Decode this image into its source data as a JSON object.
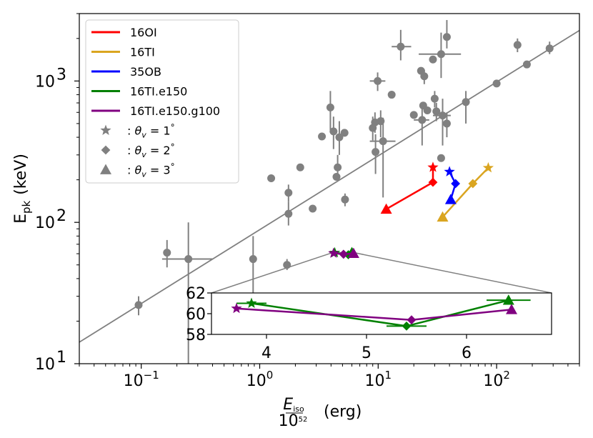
{
  "chart_data": {
    "type": "scatter",
    "xscale": "log",
    "yscale": "log",
    "xlim": [
      0.03,
      500
    ],
    "ylim": [
      10,
      3000
    ],
    "xlabel": {
      "prefix": "E",
      "prefix_sub": "iso",
      "denominator_base": "10",
      "denominator_exp": "52",
      "suffix": "(erg)"
    },
    "ylabel": {
      "prefix": "E",
      "prefix_sub": "pk",
      "suffix": "(keV)"
    },
    "x_ticks": [
      {
        "value": 0.1,
        "base": "10",
        "exp": "−1"
      },
      {
        "value": 1,
        "base": "10",
        "exp": "0"
      },
      {
        "value": 10,
        "base": "10",
        "exp": "1"
      },
      {
        "value": 100,
        "base": "10",
        "exp": "2"
      }
    ],
    "y_ticks": [
      {
        "value": 10,
        "base": "10",
        "exp": "1"
      },
      {
        "value": 100,
        "base": "10",
        "exp": "2"
      },
      {
        "value": 1000,
        "base": "10",
        "exp": "3"
      }
    ],
    "fit_line": {
      "color": "#808080",
      "x": [
        0.03,
        500
      ],
      "y": [
        14.2,
        2280
      ]
    },
    "observations": {
      "color": "#808080",
      "points": [
        {
          "x": 0.095,
          "y": 26,
          "ylo": 22,
          "yhi": 30
        },
        {
          "x": 0.165,
          "y": 61,
          "ylo": 48,
          "yhi": 75
        },
        {
          "x": 0.25,
          "y": 55,
          "ylo": 5,
          "yhi": 100,
          "xlo": 0.15,
          "xhi": 0.4
        },
        {
          "x": 0.88,
          "y": 55,
          "ylo": 20,
          "yhi": 80
        },
        {
          "x": 1.25,
          "y": 205
        },
        {
          "x": 1.7,
          "y": 50,
          "ylo": 46,
          "yhi": 55
        },
        {
          "x": 1.75,
          "y": 162,
          "ylo": 140,
          "yhi": 185
        },
        {
          "x": 1.75,
          "y": 115,
          "ylo": 95,
          "yhi": 140
        },
        {
          "x": 2.2,
          "y": 245
        },
        {
          "x": 2.8,
          "y": 125
        },
        {
          "x": 3.35,
          "y": 405
        },
        {
          "x": 3.95,
          "y": 650,
          "ylo": 450,
          "yhi": 850
        },
        {
          "x": 4.2,
          "y": 440,
          "ylo": 330,
          "yhi": 560
        },
        {
          "x": 4.45,
          "y": 210
        },
        {
          "x": 4.55,
          "y": 245,
          "ylo": 200,
          "yhi": 300
        },
        {
          "x": 4.7,
          "y": 400,
          "ylo": 300,
          "yhi": 520
        },
        {
          "x": 5.2,
          "y": 430
        },
        {
          "x": 5.25,
          "y": 145,
          "ylo": 130,
          "yhi": 160
        },
        {
          "x": 9.0,
          "y": 465,
          "ylo": 380,
          "yhi": 560
        },
        {
          "x": 9.4,
          "y": 510,
          "ylo": 430,
          "yhi": 600
        },
        {
          "x": 9.5,
          "y": 315,
          "ylo": 220,
          "yhi": 420
        },
        {
          "x": 9.9,
          "y": 1000,
          "ylo": 850,
          "yhi": 1150,
          "xlo": 8.5,
          "xhi": 11.5
        },
        {
          "x": 10.5,
          "y": 520,
          "ylo": 400,
          "yhi": 620
        },
        {
          "x": 11.0,
          "y": 375,
          "ylo": 150,
          "yhi": 550,
          "xlo": 8.5,
          "xhi": 14.0
        },
        {
          "x": 13.0,
          "y": 800
        },
        {
          "x": 15.5,
          "y": 1750,
          "ylo": 1400,
          "yhi": 2300,
          "xlo": 13.0,
          "xhi": 19.0
        },
        {
          "x": 20.0,
          "y": 575
        },
        {
          "x": 23.0,
          "y": 1180
        },
        {
          "x": 23.5,
          "y": 530,
          "ylo": 350,
          "yhi": 700,
          "xlo": 20.0,
          "xhi": 27.0
        },
        {
          "x": 24.5,
          "y": 1080,
          "ylo": 950,
          "yhi": 1200
        },
        {
          "x": 24.0,
          "y": 670
        },
        {
          "x": 26.0,
          "y": 620
        },
        {
          "x": 29.0,
          "y": 1420
        },
        {
          "x": 30.0,
          "y": 750,
          "ylo": 650,
          "yhi": 850
        },
        {
          "x": 31.0,
          "y": 610,
          "ylo": 520,
          "yhi": 700
        },
        {
          "x": 34.0,
          "y": 1550,
          "ylo": 1050,
          "yhi": 2200,
          "xlo": 22.0,
          "xhi": 50.0
        },
        {
          "x": 34.0,
          "y": 285
        },
        {
          "x": 35.0,
          "y": 570,
          "ylo": 350,
          "yhi": 750,
          "xlo": 29.0,
          "xhi": 41.0
        },
        {
          "x": 38.0,
          "y": 2050,
          "ylo": 1700,
          "yhi": 2700
        },
        {
          "x": 38.0,
          "y": 500,
          "ylo": 400,
          "yhi": 600
        },
        {
          "x": 55.0,
          "y": 710,
          "ylo": 500,
          "yhi": 850
        },
        {
          "x": 100.0,
          "y": 960
        },
        {
          "x": 150.0,
          "y": 1800,
          "ylo": 1600,
          "yhi": 2000
        },
        {
          "x": 180.0,
          "y": 1310
        },
        {
          "x": 280.0,
          "y": 1700,
          "ylo": 1550,
          "yhi": 1900
        }
      ]
    },
    "series": [
      {
        "name": "16OI",
        "color": "#ff0000",
        "points": [
          {
            "x": 29.0,
            "y": 245,
            "marker": "star"
          },
          {
            "x": 29.0,
            "y": 192,
            "marker": "diamond"
          },
          {
            "x": 11.7,
            "y": 124,
            "marker": "triangle"
          }
        ]
      },
      {
        "name": "16TI",
        "color": "#daa520",
        "points": [
          {
            "x": 85.0,
            "y": 243,
            "marker": "star"
          },
          {
            "x": 63.0,
            "y": 188,
            "marker": "diamond"
          },
          {
            "x": 35.0,
            "y": 109,
            "marker": "triangle"
          }
        ]
      },
      {
        "name": "35OB",
        "color": "#0000ff",
        "points": [
          {
            "x": 40.0,
            "y": 228,
            "marker": "star"
          },
          {
            "x": 45.0,
            "y": 188,
            "marker": "diamond"
          },
          {
            "x": 41.0,
            "y": 145,
            "marker": "triangle"
          }
        ]
      },
      {
        "name": "16TI.e150",
        "color": "#008000",
        "points": [
          {
            "x": 4.3,
            "y": 61.0,
            "marker": "star"
          },
          {
            "x": 5.6,
            "y": 59.0,
            "marker": "diamond"
          },
          {
            "x": 6.0,
            "y": 61.1,
            "marker": "triangle"
          }
        ]
      },
      {
        "name": "16TI.e150.g100",
        "color": "#800080",
        "points": [
          {
            "x": 4.2,
            "y": 60.5,
            "marker": "star"
          },
          {
            "x": 5.1,
            "y": 59.5,
            "marker": "diamond"
          },
          {
            "x": 6.2,
            "y": 60.3,
            "marker": "triangle"
          }
        ]
      }
    ],
    "legend": {
      "location": "top-left",
      "marker_prefix": ": ",
      "marker_symbol": "θ",
      "marker_sub": "v",
      "markers": [
        {
          "marker": "star",
          "value": "1",
          "unit": "°"
        },
        {
          "marker": "diamond",
          "value": "2",
          "unit": "°"
        },
        {
          "marker": "triangle",
          "value": "3",
          "unit": "°"
        }
      ]
    },
    "inset": {
      "xlim": [
        3.45,
        6.85
      ],
      "ylim": [
        58,
        62
      ],
      "x_ticks": [
        "4",
        "5",
        "6"
      ],
      "y_ticks": [
        "58",
        "60",
        "62"
      ],
      "connector_color": "#808080",
      "series": [
        {
          "name": "16TI.e150",
          "color": "#008000",
          "points": [
            {
              "x": 3.85,
              "y": 61.0,
              "marker": "star",
              "xerr": 0.15
            },
            {
              "x": 5.4,
              "y": 58.8,
              "marker": "diamond",
              "xerr": 0.2
            },
            {
              "x": 6.42,
              "y": 61.3,
              "marker": "triangle",
              "xerr": 0.22
            }
          ]
        },
        {
          "name": "16TI.e150.g100",
          "color": "#800080",
          "points": [
            {
              "x": 3.7,
              "y": 60.5,
              "marker": "star"
            },
            {
              "x": 5.45,
              "y": 59.4,
              "marker": "diamond"
            },
            {
              "x": 6.45,
              "y": 60.4,
              "marker": "triangle"
            }
          ]
        }
      ]
    }
  }
}
